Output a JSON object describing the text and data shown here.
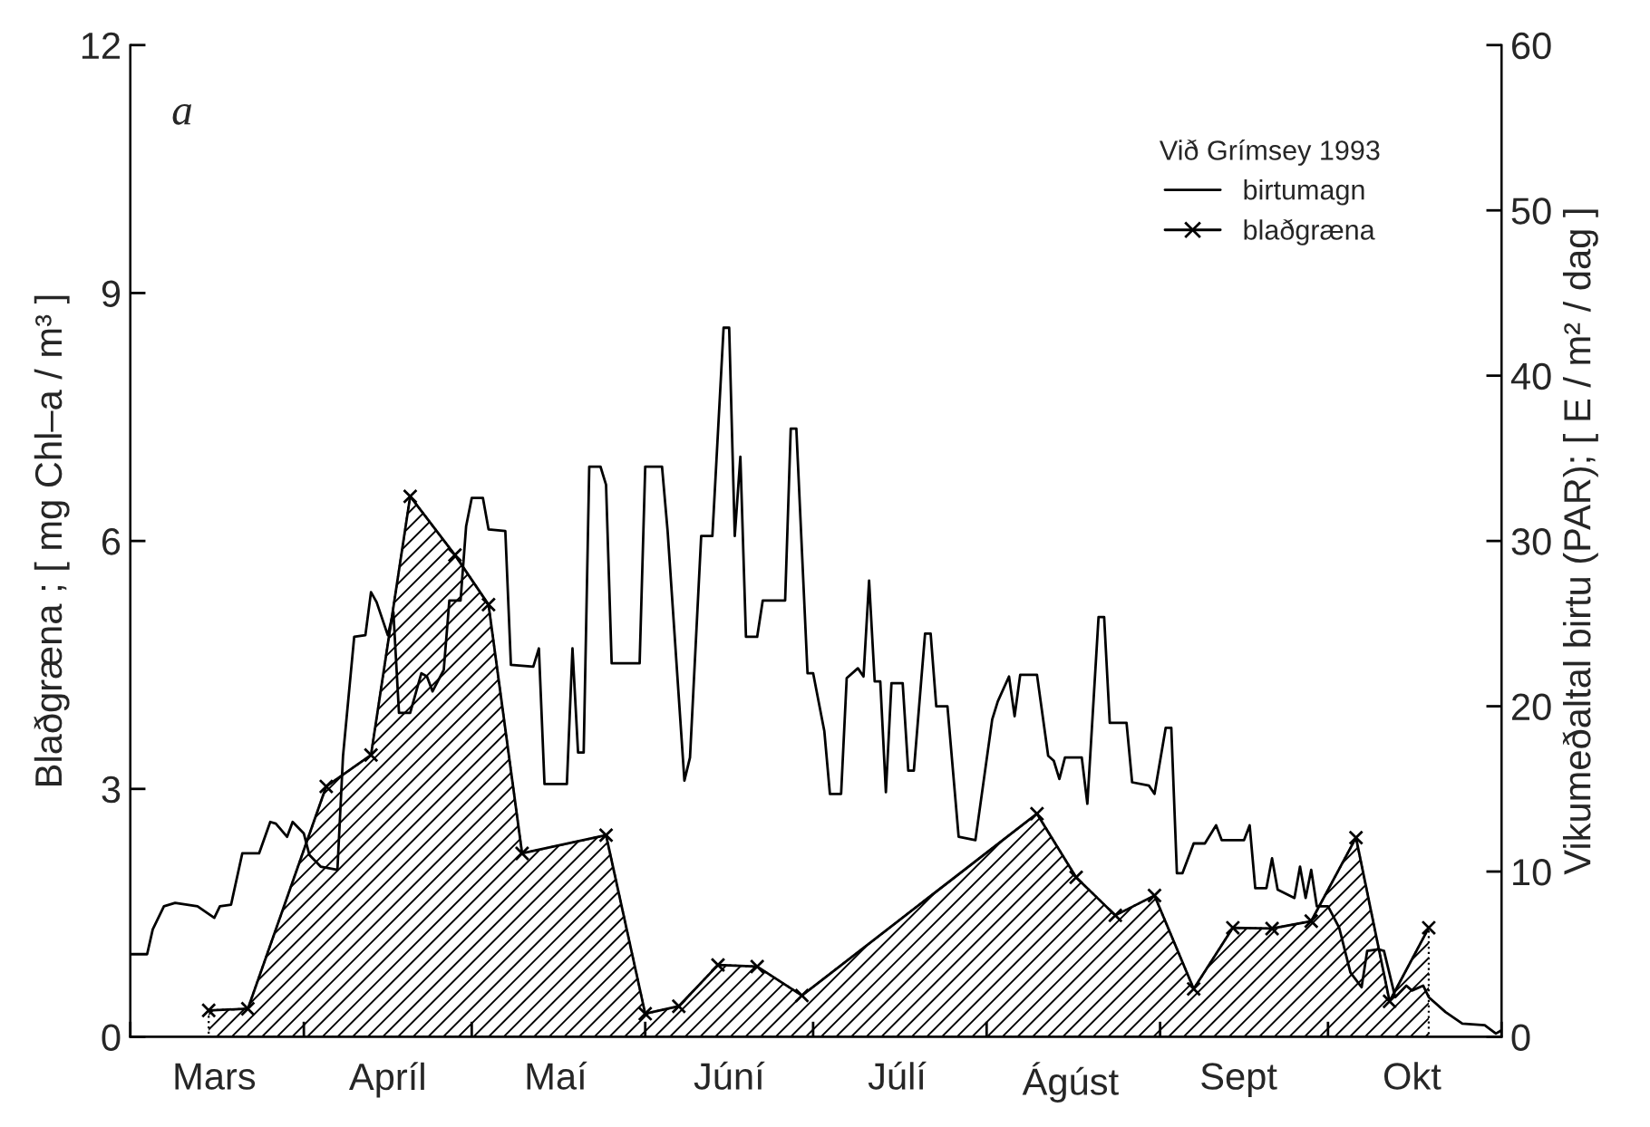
{
  "chart_data": {
    "type": "line",
    "xlabel": null,
    "ylabel": "Blaðgræna ; [ mg Chl–a / m³ ]",
    "y2label": "Vikumeðaltal birtu (PAR); [ E / m² / dag ]",
    "legend_title": "Við Grímsey 1993",
    "annotations": [
      "a"
    ],
    "xlim": [
      "1993-03-01",
      "1993-11-01"
    ],
    "xticks": [
      {
        "value": "1993-03-01",
        "label": null
      },
      {
        "value": "1993-04-01",
        "label": null
      },
      {
        "value": "1993-05-01",
        "label": null
      },
      {
        "value": "1993-06-01",
        "label": null
      },
      {
        "value": "1993-07-01",
        "label": null
      },
      {
        "value": "1993-08-01",
        "label": null
      },
      {
        "value": "1993-09-01",
        "label": null
      },
      {
        "value": "1993-10-01",
        "label": null
      },
      {
        "value": "1993-11-01",
        "label": null
      },
      {
        "value": "1993-03-16",
        "label": "Mars"
      },
      {
        "value": "1993-04-16",
        "label": "Apríl"
      },
      {
        "value": "1993-05-16",
        "label": "Maí"
      },
      {
        "value": "1993-06-16",
        "label": "Júní"
      },
      {
        "value": "1993-07-16",
        "label": "Júlí"
      },
      {
        "value": "1993-08-16",
        "label": "Ágúst"
      },
      {
        "value": "1993-09-15",
        "label": "Sept"
      },
      {
        "value": "1993-10-16",
        "label": "Okt"
      }
    ],
    "ylim": [
      0,
      12
    ],
    "yticks": [
      0,
      3,
      6,
      9,
      12
    ],
    "y2lim": [
      0,
      60
    ],
    "y2ticks": [
      0,
      10,
      20,
      30,
      40,
      50,
      60
    ],
    "grid": false,
    "legend": "top right",
    "series": [
      {
        "name": "birtumagn",
        "axis": "y2",
        "color": "#000000",
        "marker": "none",
        "line_style": "solid",
        "x": [
          "1993-03-01",
          "1993-03-04",
          "1993-03-05",
          "1993-03-07",
          "1993-03-09",
          "1993-03-13",
          "1993-03-16",
          "1993-03-17",
          "1993-03-19",
          "1993-03-21",
          "1993-03-24",
          "1993-03-26",
          "1993-03-27",
          "1993-03-29",
          "1993-03-30",
          "1993-04-01",
          "1993-04-02",
          "1993-04-04",
          "1993-04-07",
          "1993-04-08",
          "1993-04-10",
          "1993-04-12",
          "1993-04-13",
          "1993-04-14",
          "1993-04-16",
          "1993-04-17",
          "1993-04-18",
          "1993-04-20",
          "1993-04-22",
          "1993-04-23",
          "1993-04-24",
          "1993-04-26",
          "1993-04-27",
          "1993-04-29",
          "1993-04-30",
          "1993-05-01",
          "1993-05-03",
          "1993-05-04",
          "1993-05-07",
          "1993-05-08",
          "1993-05-12",
          "1993-05-13",
          "1993-05-14",
          "1993-05-18",
          "1993-05-19",
          "1993-05-20",
          "1993-05-21",
          "1993-05-22",
          "1993-05-24",
          "1993-05-25",
          "1993-05-26",
          "1993-05-31",
          "1993-06-01",
          "1993-06-04",
          "1993-06-05",
          "1993-06-08",
          "1993-06-09",
          "1993-06-11",
          "1993-06-13",
          "1993-06-15",
          "1993-06-16",
          "1993-06-17",
          "1993-06-18",
          "1993-06-19",
          "1993-06-21",
          "1993-06-22",
          "1993-06-26",
          "1993-06-27",
          "1993-06-28",
          "1993-06-30",
          "1993-07-01",
          "1993-07-03",
          "1993-07-04",
          "1993-07-06",
          "1993-07-07",
          "1993-07-09",
          "1993-07-10",
          "1993-07-11",
          "1993-07-12",
          "1993-07-13",
          "1993-07-14",
          "1993-07-15",
          "1993-07-17",
          "1993-07-18",
          "1993-07-19",
          "1993-07-21",
          "1993-07-22",
          "1993-07-23",
          "1993-07-25",
          "1993-07-27",
          "1993-07-30",
          "1993-08-02",
          "1993-08-03",
          "1993-08-05",
          "1993-08-06",
          "1993-08-07",
          "1993-08-10",
          "1993-08-12",
          "1993-08-13",
          "1993-08-14",
          "1993-08-15",
          "1993-08-18",
          "1993-08-19",
          "1993-08-21",
          "1993-08-22",
          "1993-08-23",
          "1993-08-26",
          "1993-08-27",
          "1993-08-30",
          "1993-08-31",
          "1993-09-02",
          "1993-09-03",
          "1993-09-04",
          "1993-09-05",
          "1993-09-07",
          "1993-09-09",
          "1993-09-11",
          "1993-09-12",
          "1993-09-16",
          "1993-09-17",
          "1993-09-18",
          "1993-09-20",
          "1993-09-21",
          "1993-09-22",
          "1993-09-25",
          "1993-09-26",
          "1993-09-27",
          "1993-09-28",
          "1993-09-29",
          "1993-10-01",
          "1993-10-03",
          "1993-10-05",
          "1993-10-07",
          "1993-10-08",
          "1993-10-10",
          "1993-10-11",
          "1993-10-13",
          "1993-10-15",
          "1993-10-16",
          "1993-10-18",
          "1993-10-19",
          "1993-10-22",
          "1993-10-25",
          "1993-10-29",
          "1993-10-31",
          "1993-11-01"
        ],
        "values": [
          5.0,
          5.0,
          6.5,
          7.9,
          8.1,
          7.9,
          7.2,
          7.9,
          8.0,
          11.1,
          11.1,
          13.0,
          12.9,
          12.1,
          13.0,
          12.3,
          11.0,
          10.3,
          10.1,
          17.0,
          24.2,
          24.3,
          26.9,
          26.3,
          24.3,
          25.7,
          19.6,
          19.6,
          22.0,
          21.8,
          20.9,
          22.2,
          26.4,
          26.4,
          30.9,
          32.6,
          32.6,
          30.7,
          30.6,
          22.5,
          22.4,
          23.5,
          15.3,
          15.3,
          23.5,
          17.2,
          17.2,
          34.5,
          34.5,
          33.4,
          22.6,
          22.6,
          34.5,
          34.5,
          30.6,
          15.5,
          16.9,
          30.3,
          30.3,
          42.9,
          42.9,
          30.3,
          35.1,
          24.2,
          24.2,
          26.4,
          26.4,
          36.8,
          36.8,
          22.0,
          22.0,
          18.5,
          14.7,
          14.7,
          21.7,
          22.3,
          21.8,
          27.6,
          21.5,
          21.5,
          14.8,
          21.4,
          21.4,
          16.1,
          16.1,
          24.4,
          24.4,
          20.0,
          20.0,
          12.1,
          11.9,
          19.2,
          20.3,
          21.8,
          19.4,
          21.9,
          21.9,
          17.0,
          16.7,
          15.6,
          16.9,
          16.9,
          14.1,
          25.4,
          25.4,
          19.0,
          19.0,
          15.4,
          15.2,
          14.7,
          18.7,
          18.7,
          9.9,
          9.9,
          11.7,
          11.7,
          12.8,
          11.9,
          11.9,
          12.8,
          9.0,
          9.0,
          10.8,
          8.9,
          8.4,
          10.3,
          8.4,
          10.1,
          7.9,
          7.9,
          6.6,
          3.9,
          3.0,
          5.2,
          5.3,
          5.2,
          2.4,
          3.1,
          2.8,
          3.1,
          2.4,
          1.5,
          0.8,
          0.7,
          0.2,
          0.4
        ]
      },
      {
        "name": "blaðgræna",
        "type": "area",
        "axis": "y",
        "color": "#000000",
        "marker": "cross",
        "line_style": "solid",
        "x": [
          "1993-03-15",
          "1993-03-22",
          "1993-04-05",
          "1993-04-13",
          "1993-04-20",
          "1993-04-28",
          "1993-05-04",
          "1993-05-10",
          "1993-05-25",
          "1993-06-01",
          "1993-06-07",
          "1993-06-14",
          "1993-06-21",
          "1993-06-29",
          "1993-08-10",
          "1993-08-17",
          "1993-08-24",
          "1993-08-31",
          "1993-09-07",
          "1993-09-14",
          "1993-09-21",
          "1993-09-28",
          "1993-10-06",
          "1993-10-12",
          "1993-10-19"
        ],
        "values": [
          0.32,
          0.34,
          3.03,
          3.41,
          6.54,
          5.83,
          5.23,
          2.22,
          2.44,
          0.28,
          0.37,
          0.87,
          0.85,
          0.5,
          2.7,
          1.93,
          1.47,
          1.71,
          0.58,
          1.32,
          1.31,
          1.4,
          2.41,
          0.43,
          1.32
        ]
      }
    ]
  }
}
